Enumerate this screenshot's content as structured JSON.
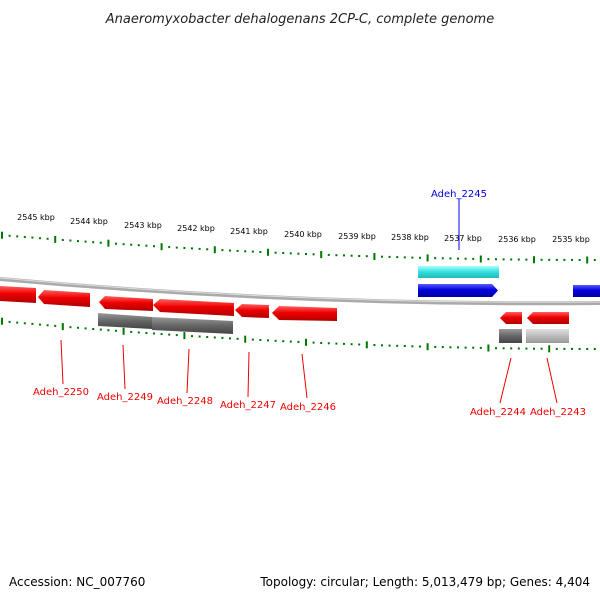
{
  "title": "Anaeromyxobacter dehalogenans 2CP-C, complete genome",
  "footer": {
    "accession": "Accession: NC_007760",
    "summary": "Topology: circular; Length: 5,013,479 bp; Genes: 4,404"
  },
  "colors": {
    "forward_gene": "#0000dd",
    "reverse_gene": "#ee0000",
    "forward_feature": "#22dddd",
    "reverse_feature": "#666666",
    "tick": "#007700",
    "backbone": "#999999"
  },
  "ticks": [
    {
      "label": "2545 kbp"
    },
    {
      "label": "2544 kbp"
    },
    {
      "label": "2543 kbp"
    },
    {
      "label": "2542 kbp"
    },
    {
      "label": "2541 kbp"
    },
    {
      "label": "2540 kbp"
    },
    {
      "label": "2539 kbp"
    },
    {
      "label": "2538 kbp"
    },
    {
      "label": "2537 kbp"
    },
    {
      "label": "2536 kbp"
    },
    {
      "label": "2535 kbp"
    }
  ],
  "gene_labels": [
    {
      "text": "Adeh_2245",
      "strand": "forward"
    },
    {
      "text": "Adeh_2250",
      "strand": "reverse"
    },
    {
      "text": "Adeh_2249",
      "strand": "reverse"
    },
    {
      "text": "Adeh_2248",
      "strand": "reverse"
    },
    {
      "text": "Adeh_2247",
      "strand": "reverse"
    },
    {
      "text": "Adeh_2246",
      "strand": "reverse"
    },
    {
      "text": "Adeh_2244",
      "strand": "reverse"
    },
    {
      "text": "Adeh_2243",
      "strand": "reverse"
    }
  ]
}
